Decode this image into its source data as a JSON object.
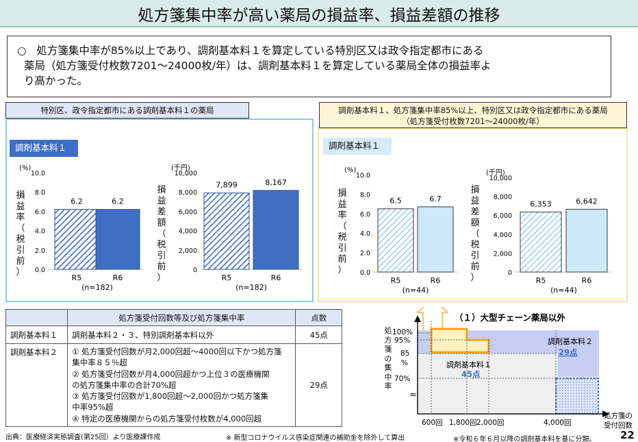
{
  "title": "処方箋集中率が高い薬局の損益率、損益差額の推移",
  "summary": {
    "bullet": "○",
    "line1": "処方箋集中率が85%以上であり、調剤基本料１を算定している特別区又は政令指定都市にある",
    "line2": "薬局（処方箋受付枚数7201〜24000枚/年）は、調剤基本料１を算定している薬局全体の損益率よ",
    "line3": "り高かった。"
  },
  "left_panel": {
    "header": "特別区、政令指定都市にある調剤基本料１の薬局",
    "chip": "調剤基本料１"
  },
  "right_panel": {
    "header_line1": "調剤基本料１、処方箋集中率85%以上、特別区又は政令指定都市にある薬局",
    "header_line2": "（処方箋受付枚数7201〜24000枚/年）",
    "chip": "調剤基本料１"
  },
  "colors": {
    "dark_blue": "#3f6fc5",
    "light_blue": "#cde8f8",
    "orange": "#f5a21c",
    "lavender": "#c5cdf4",
    "teal_title": "#d9ece8"
  },
  "chart_data": [
    {
      "type": "bar",
      "id": "left-profit-rate",
      "categories": [
        "R5",
        "R6"
      ],
      "values": [
        6.2,
        6.2
      ],
      "value_labels": [
        "6.2",
        "6.2"
      ],
      "unit": "(%)",
      "ylabel": "損益率（税引前）",
      "ylim": [
        0,
        10
      ],
      "yticks": [
        "0.0",
        "2.0",
        "4.0",
        "6.0",
        "8.0",
        "10.0"
      ],
      "n_label": "(n=182)",
      "fills": [
        "hatched",
        "solid"
      ]
    },
    {
      "type": "bar",
      "id": "left-profit-amount",
      "categories": [
        "R5",
        "R6"
      ],
      "values": [
        7899,
        8167
      ],
      "value_labels": [
        "7,899",
        "8,167"
      ],
      "unit": "(千円)",
      "ylabel": "損益差額（税引前）",
      "ylim": [
        0,
        10000
      ],
      "yticks": [
        "0",
        "2,000",
        "4,000",
        "6,000",
        "8,000",
        "10,000"
      ],
      "n_label": "(n=182)",
      "fills": [
        "hatched",
        "solid"
      ]
    },
    {
      "type": "bar",
      "id": "right-profit-rate",
      "categories": [
        "R5",
        "R6"
      ],
      "values": [
        6.5,
        6.7
      ],
      "value_labels": [
        "6.5",
        "6.7"
      ],
      "unit": "(%)",
      "ylabel": "損益率（税引前）",
      "ylim": [
        0,
        10
      ],
      "yticks": [
        "0.0",
        "2.0",
        "4.0",
        "6.0",
        "8.0",
        "10.0"
      ],
      "n_label": "(n=44)",
      "fills": [
        "hatched",
        "solid"
      ]
    },
    {
      "type": "bar",
      "id": "right-profit-amount",
      "categories": [
        "R5",
        "R6"
      ],
      "values": [
        6353,
        6642
      ],
      "value_labels": [
        "6,353",
        "6,642"
      ],
      "unit": "(千円)",
      "ylabel": "損益差額（税引前）",
      "ylim": [
        0,
        10000
      ],
      "yticks": [
        "0",
        "2,000",
        "4,000",
        "6,000",
        "8,000",
        "10,000"
      ],
      "n_label": "(n=44)",
      "fills": [
        "hatched",
        "solid"
      ]
    }
  ],
  "table": {
    "headers": [
      "",
      "処方箋受付回数等及び処方箋集中率",
      "点数"
    ],
    "rows": [
      {
        "name": "調剤基本料１",
        "desc": "調剤基本料２・３、特別調剤基本料以外",
        "points": "45点"
      },
      {
        "name": "調剤基本料２",
        "desc_lines": [
          "① 処方箋受付回数が月2,000回超〜4000回以下かつ処方箋",
          "集中率８５％超",
          "② 処方箋受付回数が月4,000回超かつ上位３の医療機関",
          "の処方箋集中率の合計70%超",
          "③ 処方箋受付回数が1,800回超〜2,000回かつ処方箋集",
          "中率95%超",
          "④ 特定の医療機関からの処方箋受付枚数が4,000回超"
        ],
        "points": "29点"
      }
    ]
  },
  "diagram": {
    "heading": "（１）大型チェーン薬局以外",
    "y_axis_label": "処方箋の集中率",
    "y_ticks": [
      "100%",
      "95%",
      "85",
      "%",
      "70%"
    ],
    "x_ticks": [
      "600回",
      "1,800回",
      "2,000回",
      "4,000回"
    ],
    "x_axis_label_line1": "処方箋の",
    "x_axis_label_line2": "受付回数",
    "region1_label": "調剤基本料１",
    "region1_points": "45点",
    "region2_label": "調剤基本料２",
    "region2_points": "29点"
  },
  "footer": {
    "source": "出典：医療経済実態調査(第25回）より医療課作成",
    "note1": "※ 新型コロナウイルス感染症関連の補助金を除外して算出",
    "note2": "※令和６年６月以降の調剤基本料を基に分類。",
    "page": "22"
  }
}
